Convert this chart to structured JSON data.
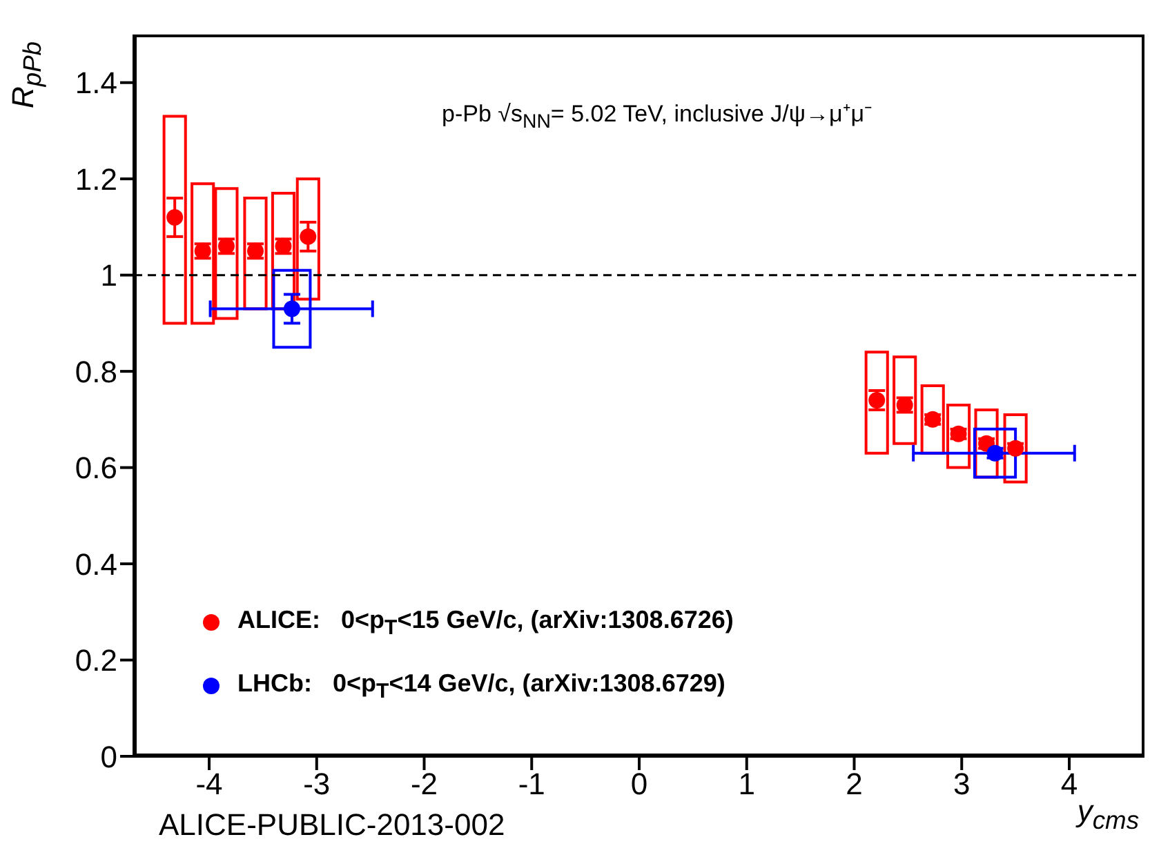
{
  "chart_data": {
    "type": "scatter",
    "xlabel": "y$_{cms}$",
    "ylabel": "R$_{pPb}$",
    "xlim": [
      -4.7,
      4.7
    ],
    "xticks": [
      -4,
      -3,
      -2,
      -1,
      0,
      1,
      2,
      3,
      4
    ],
    "ylim": [
      0,
      1.5
    ],
    "yticks": [
      0,
      0.2,
      0.4,
      0.6,
      0.8,
      1,
      1.2,
      1.4
    ],
    "legend": "bottom left",
    "marker": "circle",
    "ref_lines": [
      {
        "axis": "y",
        "value": 1,
        "color": "#000000",
        "line_style": "dashed"
      }
    ],
    "annotations": [
      "p-Pb  √s$_{NN}$= 5.02 TeV, inclusive J/ψ→μ⁺μ⁻",
      "ALICE-PUBLIC-2013-002"
    ],
    "series": [
      {
        "type": "bar",
        "color": "#ff0000",
        "x": [
          -4.32,
          -4.06,
          -3.84,
          -3.57,
          -3.31,
          -3.08,
          2.21,
          2.47,
          2.73,
          2.97,
          3.23,
          3.5
        ],
        "base": [
          0.9,
          0.9,
          0.91,
          0.93,
          0.93,
          0.95,
          0.63,
          0.65,
          0.63,
          0.6,
          0.58,
          0.57
        ],
        "values": [
          0.43,
          0.29,
          0.27,
          0.23,
          0.24,
          0.25,
          0.21,
          0.18,
          0.14,
          0.13,
          0.14,
          0.14
        ],
        "xerrors": [
          0.1,
          0.1,
          0.1,
          0.1,
          0.1,
          0.1,
          0.1,
          0.1,
          0.1,
          0.1,
          0.1,
          0.1
        ]
      },
      {
        "type": "bar",
        "color": "#0000ff",
        "x": [
          -3.23,
          3.31
        ],
        "base": [
          0.85,
          0.58
        ],
        "values": [
          0.16,
          0.1
        ],
        "xerrors": [
          0.17,
          0.19
        ]
      },
      {
        "name": "ALICE:   0<p$_{T}$<15 GeV/c, (arXiv:1308.6726)",
        "color": "#ff0000",
        "x": [
          -4.32,
          -4.06,
          -3.84,
          -3.57,
          -3.31,
          -3.08,
          2.21,
          2.47,
          2.73,
          2.97,
          3.23,
          3.5
        ],
        "values": [
          1.12,
          1.05,
          1.06,
          1.05,
          1.06,
          1.08,
          0.74,
          0.73,
          0.7,
          0.67,
          0.65,
          0.64
        ],
        "errors": [
          0.04,
          0.015,
          0.015,
          0.015,
          0.015,
          0.03,
          0.02,
          0.015,
          0.01,
          0.01,
          0.01,
          0.01
        ]
      },
      {
        "name": "LHCb:   0<p$_{T}$<14 GeV/c, (arXiv:1308.6729)",
        "color": "#0000ff",
        "x": [
          -3.23,
          3.31
        ],
        "values": [
          0.93,
          0.63
        ],
        "errors": [
          0.03,
          0.01
        ],
        "xerrors": [
          [
            -3.99,
            -2.48
          ],
          [
            2.55,
            4.05
          ]
        ]
      }
    ]
  }
}
